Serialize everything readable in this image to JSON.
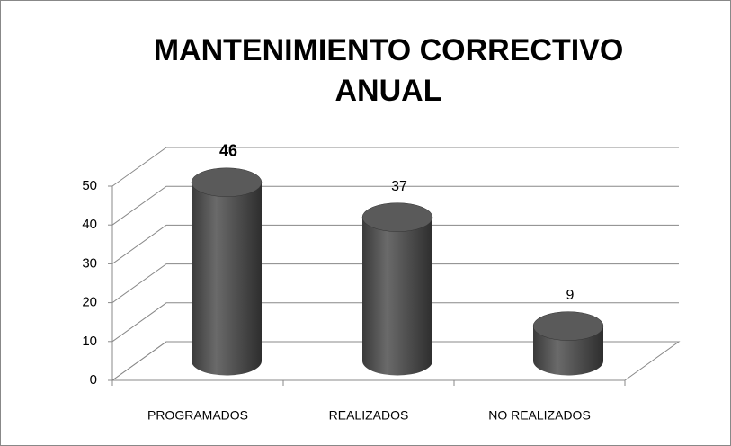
{
  "chart_data": {
    "type": "bar3d",
    "title": "MANTENIMIENTO CORRECTIVO ANUAL",
    "categories": [
      "PROGRAMADOS",
      "REALIZADOS",
      "NO REALIZADOS"
    ],
    "values": [
      46,
      37,
      9
    ],
    "color": "#4a4a4a",
    "ylim": [
      0,
      50
    ],
    "yticks": [
      0,
      10,
      20,
      30,
      40,
      50
    ],
    "grid": true
  }
}
